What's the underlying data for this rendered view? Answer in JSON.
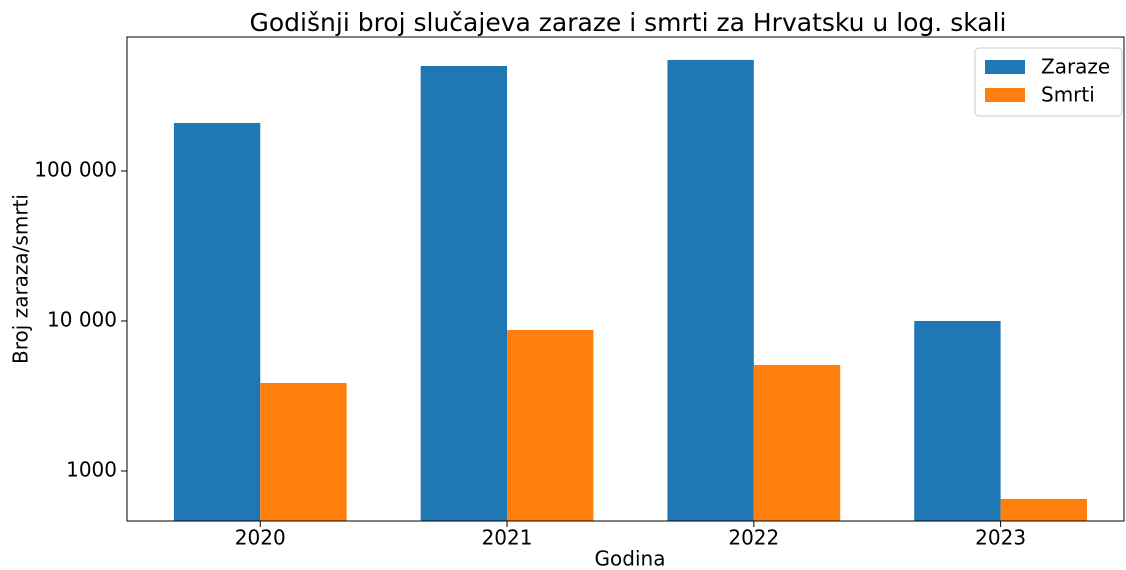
{
  "chart_data": {
    "type": "bar",
    "title": "Godišnji broj slučajeva zaraze i smrti za Hrvatsku u log. skali",
    "xlabel": "Godina",
    "ylabel": "Broj zaraza/smrti",
    "categories": [
      "2020",
      "2021",
      "2022",
      "2023"
    ],
    "series": [
      {
        "name": "Zaraze",
        "color": "#1f77b4",
        "values": [
          209000,
          501000,
          550000,
          10000
        ]
      },
      {
        "name": "Smrti",
        "color": "#ff7f0e",
        "values": [
          3860,
          8710,
          5090,
          651
        ]
      }
    ],
    "log_scale": true,
    "ylim": [
      464,
      782000
    ],
    "yticks": [
      1000,
      {
        "value": 10000,
        "label": "10 000"
      },
      {
        "value": 100000,
        "label": "100 000"
      }
    ],
    "legend": "upper right"
  }
}
